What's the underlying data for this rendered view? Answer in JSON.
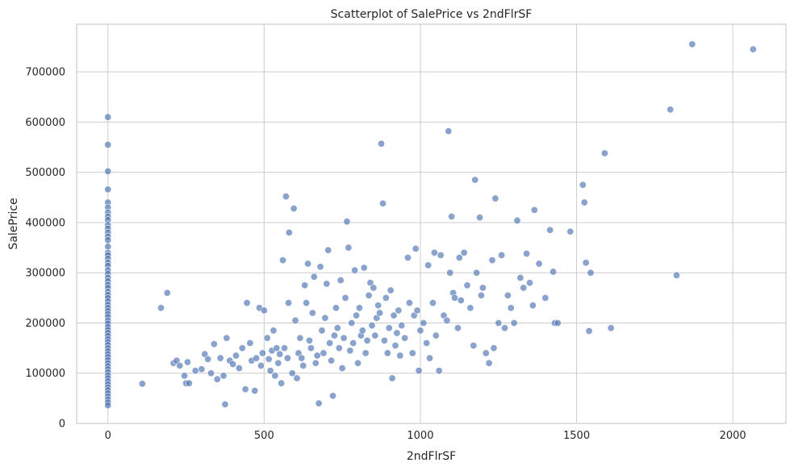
{
  "chart_data": {
    "type": "scatter",
    "title": "Scatterplot of SalePrice vs 2ndFlrSF",
    "xlabel": "2ndFlrSF",
    "ylabel": "SalePrice",
    "xlim": [
      -100,
      2170
    ],
    "ylim": [
      0,
      795000
    ],
    "xticks": [
      0,
      500,
      1000,
      1500,
      2000
    ],
    "yticks": [
      0,
      100000,
      200000,
      300000,
      400000,
      500000,
      600000,
      700000
    ],
    "grid": true,
    "point_color": "#4c72b0",
    "points": [
      [
        0,
        610000
      ],
      [
        0,
        555000
      ],
      [
        0,
        502000
      ],
      [
        0,
        466000
      ],
      [
        0,
        440000
      ],
      [
        0,
        430000
      ],
      [
        0,
        420000
      ],
      [
        0,
        412000
      ],
      [
        0,
        405000
      ],
      [
        0,
        395000
      ],
      [
        0,
        388000
      ],
      [
        0,
        380000
      ],
      [
        0,
        372000
      ],
      [
        0,
        365000
      ],
      [
        0,
        352000
      ],
      [
        0,
        340000
      ],
      [
        0,
        335000
      ],
      [
        0,
        328000
      ],
      [
        0,
        320000
      ],
      [
        0,
        314000
      ],
      [
        0,
        305000
      ],
      [
        0,
        298000
      ],
      [
        0,
        290000
      ],
      [
        0,
        283000
      ],
      [
        0,
        276000
      ],
      [
        0,
        270000
      ],
      [
        0,
        262000
      ],
      [
        0,
        256000
      ],
      [
        0,
        250000
      ],
      [
        0,
        243000
      ],
      [
        0,
        236000
      ],
      [
        0,
        230000
      ],
      [
        0,
        224000
      ],
      [
        0,
        218000
      ],
      [
        0,
        212000
      ],
      [
        0,
        205000
      ],
      [
        0,
        199000
      ],
      [
        0,
        192000
      ],
      [
        0,
        186000
      ],
      [
        0,
        180000
      ],
      [
        0,
        174000
      ],
      [
        0,
        168000
      ],
      [
        0,
        162000
      ],
      [
        0,
        156000
      ],
      [
        0,
        150000
      ],
      [
        0,
        144000
      ],
      [
        0,
        138000
      ],
      [
        0,
        132000
      ],
      [
        0,
        126000
      ],
      [
        0,
        120000
      ],
      [
        0,
        114000
      ],
      [
        0,
        108000
      ],
      [
        0,
        102000
      ],
      [
        0,
        96000
      ],
      [
        0,
        90000
      ],
      [
        0,
        84000
      ],
      [
        0,
        78000
      ],
      [
        0,
        72000
      ],
      [
        0,
        66000
      ],
      [
        0,
        60000
      ],
      [
        0,
        54000
      ],
      [
        0,
        48000
      ],
      [
        0,
        42000
      ],
      [
        0,
        36000
      ],
      [
        110,
        79000
      ],
      [
        170,
        230000
      ],
      [
        190,
        260000
      ],
      [
        210,
        120000
      ],
      [
        220,
        125000
      ],
      [
        230,
        115000
      ],
      [
        245,
        95000
      ],
      [
        250,
        80000
      ],
      [
        255,
        122000
      ],
      [
        260,
        80000
      ],
      [
        280,
        105000
      ],
      [
        300,
        108000
      ],
      [
        310,
        138000
      ],
      [
        320,
        128000
      ],
      [
        330,
        100000
      ],
      [
        340,
        158000
      ],
      [
        350,
        88000
      ],
      [
        360,
        130000
      ],
      [
        370,
        95000
      ],
      [
        375,
        38000
      ],
      [
        380,
        170000
      ],
      [
        390,
        125000
      ],
      [
        400,
        118000
      ],
      [
        410,
        135000
      ],
      [
        420,
        110000
      ],
      [
        430,
        150000
      ],
      [
        440,
        68000
      ],
      [
        445,
        240000
      ],
      [
        455,
        160000
      ],
      [
        460,
        125000
      ],
      [
        470,
        65000
      ],
      [
        475,
        130000
      ],
      [
        485,
        230000
      ],
      [
        490,
        115000
      ],
      [
        495,
        140000
      ],
      [
        500,
        225000
      ],
      [
        510,
        170000
      ],
      [
        515,
        128000
      ],
      [
        520,
        105000
      ],
      [
        525,
        145000
      ],
      [
        530,
        185000
      ],
      [
        535,
        95000
      ],
      [
        540,
        150000
      ],
      [
        545,
        120000
      ],
      [
        550,
        138000
      ],
      [
        555,
        80000
      ],
      [
        560,
        325000
      ],
      [
        565,
        150000
      ],
      [
        570,
        452000
      ],
      [
        575,
        130000
      ],
      [
        578,
        240000
      ],
      [
        580,
        380000
      ],
      [
        590,
        100000
      ],
      [
        595,
        428000
      ],
      [
        600,
        205000
      ],
      [
        605,
        90000
      ],
      [
        610,
        140000
      ],
      [
        615,
        170000
      ],
      [
        620,
        130000
      ],
      [
        625,
        115000
      ],
      [
        630,
        275000
      ],
      [
        635,
        240000
      ],
      [
        640,
        318000
      ],
      [
        645,
        165000
      ],
      [
        650,
        150000
      ],
      [
        655,
        220000
      ],
      [
        660,
        292000
      ],
      [
        665,
        120000
      ],
      [
        670,
        135000
      ],
      [
        675,
        40000
      ],
      [
        680,
        312000
      ],
      [
        685,
        185000
      ],
      [
        690,
        140000
      ],
      [
        695,
        210000
      ],
      [
        700,
        278000
      ],
      [
        705,
        345000
      ],
      [
        710,
        160000
      ],
      [
        715,
        125000
      ],
      [
        720,
        55000
      ],
      [
        725,
        175000
      ],
      [
        730,
        230000
      ],
      [
        735,
        190000
      ],
      [
        740,
        150000
      ],
      [
        745,
        285000
      ],
      [
        750,
        110000
      ],
      [
        755,
        170000
      ],
      [
        760,
        250000
      ],
      [
        765,
        402000
      ],
      [
        770,
        350000
      ],
      [
        775,
        145000
      ],
      [
        780,
        200000
      ],
      [
        785,
        160000
      ],
      [
        790,
        305000
      ],
      [
        795,
        215000
      ],
      [
        800,
        120000
      ],
      [
        805,
        230000
      ],
      [
        810,
        175000
      ],
      [
        815,
        185000
      ],
      [
        820,
        310000
      ],
      [
        825,
        140000
      ],
      [
        830,
        165000
      ],
      [
        835,
        255000
      ],
      [
        840,
        280000
      ],
      [
        845,
        195000
      ],
      [
        850,
        270000
      ],
      [
        855,
        175000
      ],
      [
        860,
        210000
      ],
      [
        865,
        235000
      ],
      [
        870,
        220000
      ],
      [
        875,
        557000
      ],
      [
        880,
        438000
      ],
      [
        885,
        165000
      ],
      [
        890,
        250000
      ],
      [
        895,
        140000
      ],
      [
        900,
        190000
      ],
      [
        905,
        265000
      ],
      [
        910,
        90000
      ],
      [
        915,
        215000
      ],
      [
        920,
        155000
      ],
      [
        925,
        180000
      ],
      [
        930,
        225000
      ],
      [
        935,
        135000
      ],
      [
        940,
        195000
      ],
      [
        950,
        170000
      ],
      [
        960,
        330000
      ],
      [
        965,
        240000
      ],
      [
        975,
        140000
      ],
      [
        980,
        215000
      ],
      [
        985,
        348000
      ],
      [
        990,
        225000
      ],
      [
        995,
        105000
      ],
      [
        1000,
        185000
      ],
      [
        1010,
        200000
      ],
      [
        1020,
        160000
      ],
      [
        1025,
        315000
      ],
      [
        1030,
        130000
      ],
      [
        1040,
        240000
      ],
      [
        1045,
        340000
      ],
      [
        1050,
        175000
      ],
      [
        1060,
        105000
      ],
      [
        1065,
        335000
      ],
      [
        1075,
        215000
      ],
      [
        1085,
        205000
      ],
      [
        1090,
        582000
      ],
      [
        1095,
        300000
      ],
      [
        1100,
        412000
      ],
      [
        1105,
        260000
      ],
      [
        1110,
        250000
      ],
      [
        1120,
        190000
      ],
      [
        1125,
        330000
      ],
      [
        1130,
        245000
      ],
      [
        1140,
        340000
      ],
      [
        1150,
        275000
      ],
      [
        1160,
        230000
      ],
      [
        1170,
        155000
      ],
      [
        1175,
        485000
      ],
      [
        1180,
        300000
      ],
      [
        1190,
        410000
      ],
      [
        1195,
        255000
      ],
      [
        1200,
        270000
      ],
      [
        1210,
        140000
      ],
      [
        1220,
        120000
      ],
      [
        1230,
        325000
      ],
      [
        1235,
        150000
      ],
      [
        1240,
        448000
      ],
      [
        1250,
        200000
      ],
      [
        1260,
        335000
      ],
      [
        1270,
        190000
      ],
      [
        1280,
        255000
      ],
      [
        1290,
        230000
      ],
      [
        1300,
        200000
      ],
      [
        1310,
        404000
      ],
      [
        1320,
        290000
      ],
      [
        1330,
        270000
      ],
      [
        1340,
        338000
      ],
      [
        1350,
        280000
      ],
      [
        1360,
        235000
      ],
      [
        1365,
        425000
      ],
      [
        1380,
        318000
      ],
      [
        1400,
        250000
      ],
      [
        1415,
        385000
      ],
      [
        1425,
        302000
      ],
      [
        1430,
        200000
      ],
      [
        1440,
        200000
      ],
      [
        1480,
        382000
      ],
      [
        1520,
        475000
      ],
      [
        1525,
        440000
      ],
      [
        1530,
        320000
      ],
      [
        1540,
        184000
      ],
      [
        1545,
        300000
      ],
      [
        1590,
        538000
      ],
      [
        1610,
        190000
      ],
      [
        1800,
        625000
      ],
      [
        1820,
        295000
      ],
      [
        1870,
        755000
      ],
      [
        2065,
        745000
      ]
    ]
  }
}
